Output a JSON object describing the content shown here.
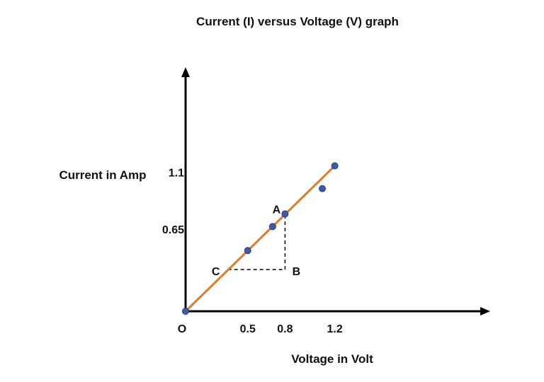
{
  "chart_data": {
    "type": "scatter",
    "title": "Current (I) versus Voltage (V) graph",
    "xlabel": "Voltage in Volt",
    "ylabel": "Current in Amp",
    "origin_label": "O",
    "x_ticks": [
      {
        "value": 0.5,
        "label": "0.5"
      },
      {
        "value": 0.8,
        "label": "0.8"
      },
      {
        "value": 1.2,
        "label": "1.2"
      }
    ],
    "y_ticks": [
      {
        "value": 0.65,
        "label": "0.65"
      },
      {
        "value": 1.1,
        "label": "1.1"
      }
    ],
    "points": [
      {
        "x": 0,
        "y": 0
      },
      {
        "x": 0.5,
        "y": 0.48
      },
      {
        "x": 0.7,
        "y": 0.67
      },
      {
        "x": 0.8,
        "y": 0.77
      },
      {
        "x": 1.1,
        "y": 0.97
      },
      {
        "x": 1.2,
        "y": 1.15
      }
    ],
    "fit_line": {
      "x1": 0,
      "y1": 0,
      "x2": 1.2,
      "y2": 1.15
    },
    "annotations": [
      {
        "label": "A",
        "x": 0.8,
        "y": 0.77
      },
      {
        "label": "B",
        "x": 0.8,
        "y": 0.33
      },
      {
        "label": "C",
        "x": 0.34,
        "y": 0.33
      }
    ],
    "xlim": [
      0,
      2.45
    ],
    "ylim": [
      0,
      1.93
    ],
    "colors": {
      "line": "#E07B2A",
      "points": "#3B5CA8",
      "axes": "#000000",
      "text": "#111111"
    }
  }
}
